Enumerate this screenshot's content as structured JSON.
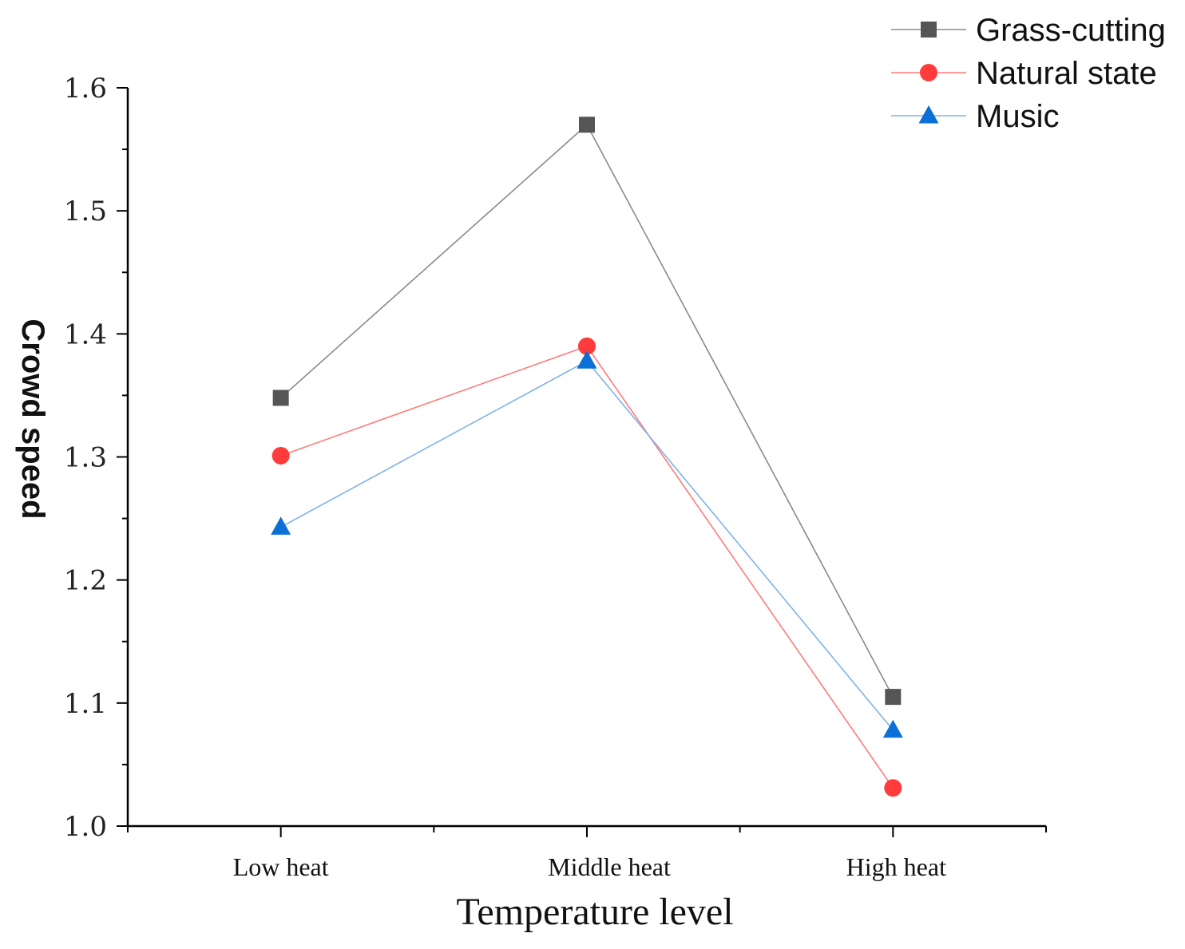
{
  "chart_data": {
    "type": "line",
    "title": "",
    "xlabel": "Temperature level",
    "ylabel": "Crowd speed",
    "categories": [
      "Low heat",
      "Middle heat",
      "High heat"
    ],
    "ylim": [
      1.0,
      1.6
    ],
    "yticks": [
      1.0,
      1.1,
      1.2,
      1.3,
      1.4,
      1.5,
      1.6
    ],
    "ytick_labels": [
      "1.0",
      "1.1",
      "1.2",
      "1.3",
      "1.4",
      "1.5",
      "1.6"
    ],
    "grid": false,
    "legend_position": "top-right",
    "series": [
      {
        "name": "Grass-cutting",
        "values": [
          1.348,
          1.57,
          1.105
        ],
        "color": "#555555",
        "line_color": "#8a8a8a",
        "marker": "square"
      },
      {
        "name": "Natural state",
        "values": [
          1.301,
          1.39,
          1.031
        ],
        "color": "#ff3b3b",
        "line_color": "#ff7a7a",
        "marker": "circle"
      },
      {
        "name": "Music",
        "values": [
          1.243,
          1.378,
          1.078
        ],
        "color": "#0a6fd6",
        "line_color": "#7fb2e6",
        "marker": "triangle"
      }
    ]
  }
}
